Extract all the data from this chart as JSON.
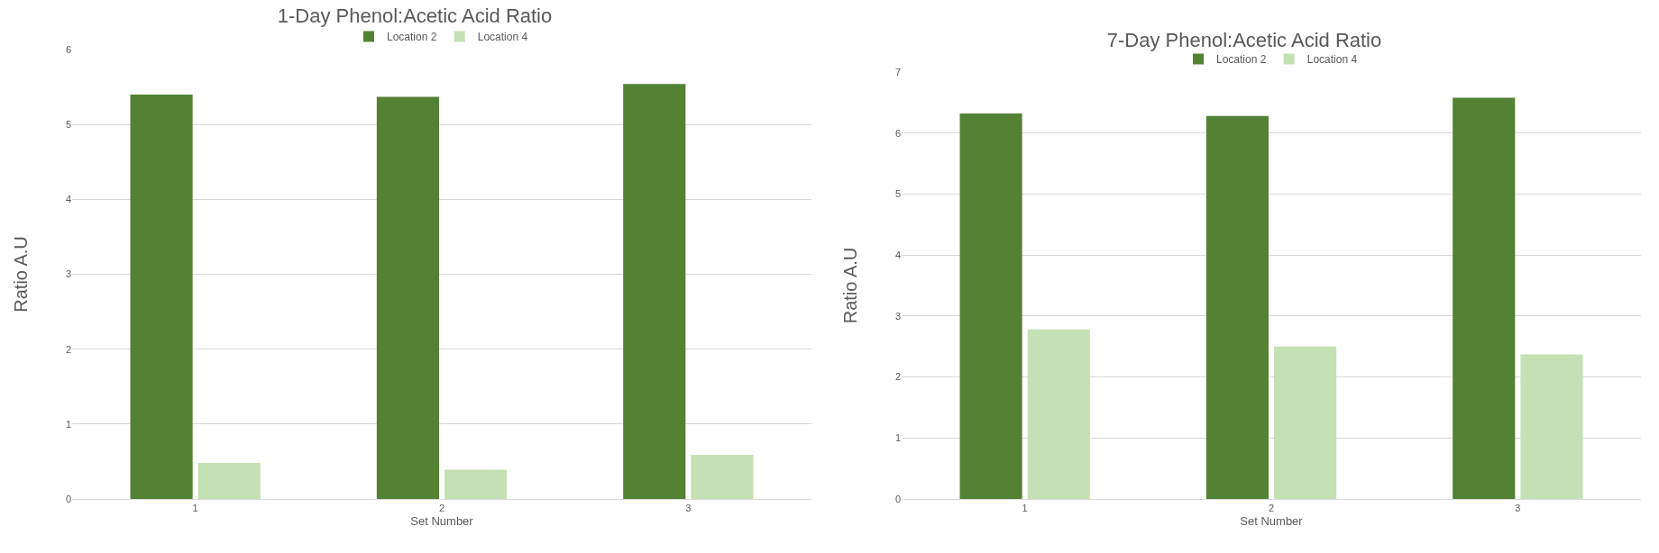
{
  "chart_data": [
    {
      "type": "bar",
      "title": "1-Day Phenol:Acetic Acid Ratio",
      "xlabel": "Set Number",
      "ylabel": "Ratio A.U",
      "categories": [
        "1",
        "2",
        "3"
      ],
      "series": [
        {
          "name": "Location 2",
          "color": "#548235",
          "values": [
            5.4,
            5.37,
            5.54
          ]
        },
        {
          "name": "Location 4",
          "color": "#c5e0b4",
          "values": [
            0.48,
            0.39,
            0.59
          ]
        }
      ],
      "ylim": [
        0,
        6
      ],
      "yticks": [
        0,
        1,
        2,
        3,
        4,
        5,
        6
      ],
      "grid": "y",
      "legend": "top"
    },
    {
      "type": "bar",
      "title": "7-Day Phenol:Acetic Acid Ratio",
      "xlabel": "Set Number",
      "ylabel": "Ratio A.U",
      "categories": [
        "1",
        "2",
        "3"
      ],
      "series": [
        {
          "name": "Location 2",
          "color": "#548235",
          "values": [
            6.32,
            6.28,
            6.58
          ]
        },
        {
          "name": "Location 4",
          "color": "#c5e0b4",
          "values": [
            2.78,
            2.5,
            2.37
          ]
        }
      ],
      "ylim": [
        0,
        7
      ],
      "yticks": [
        0,
        1,
        2,
        3,
        4,
        5,
        6,
        7
      ],
      "grid": "y",
      "legend": "top"
    }
  ]
}
